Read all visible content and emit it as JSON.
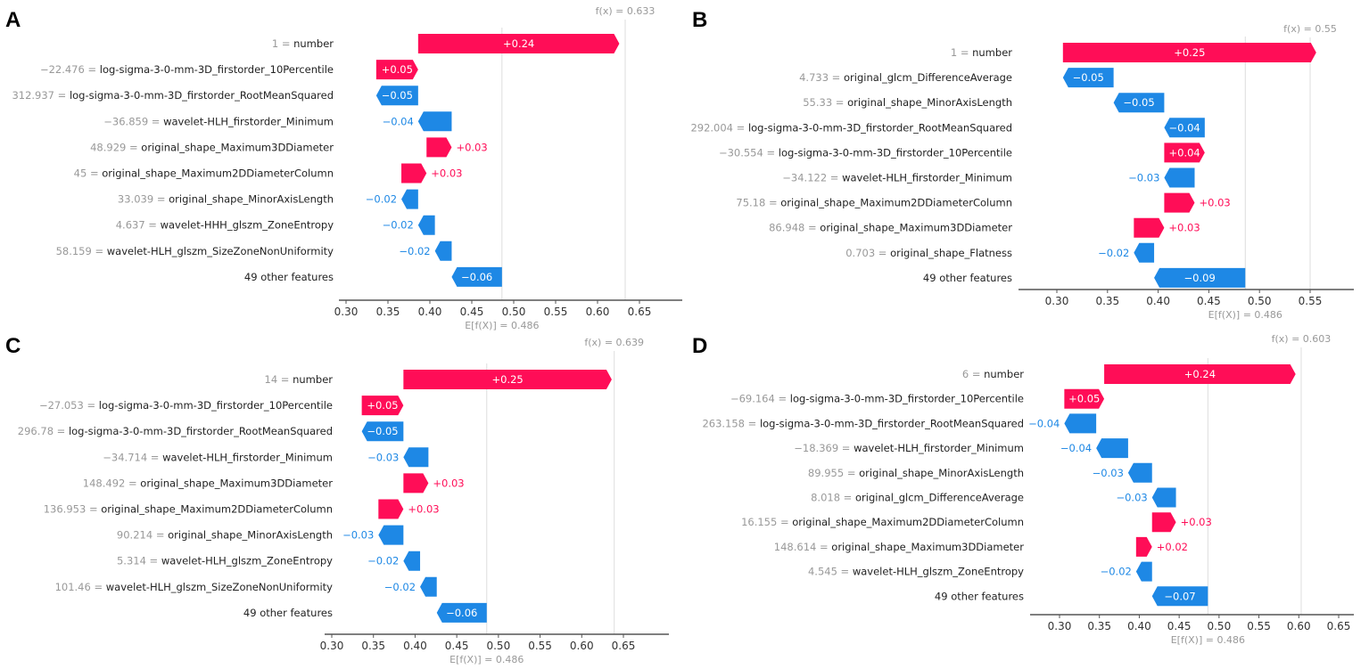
{
  "colors": {
    "positive": "#ff0d57",
    "negative": "#1e88e5",
    "axis": "#555555",
    "muted": "#999999"
  },
  "chart_data": [
    {
      "panel": "A",
      "type": "waterfall",
      "fx": 0.633,
      "fx_label": "f(x) = 0.633",
      "ex": 0.486,
      "ex_label": "E[f(X)] = 0.486",
      "xlim": [
        0.28,
        0.68
      ],
      "xticks": [
        0.3,
        0.35,
        0.4,
        0.45,
        0.5,
        0.55,
        0.6,
        0.65
      ],
      "features": [
        {
          "value": "1",
          "name": "number",
          "shap": 0.24
        },
        {
          "value": "−22.476",
          "name": "log-sigma-3-0-mm-3D_firstorder_10Percentile",
          "shap": 0.05
        },
        {
          "value": "312.937",
          "name": "log-sigma-3-0-mm-3D_firstorder_RootMeanSquared",
          "shap": -0.05
        },
        {
          "value": "−36.859",
          "name": "wavelet-HLH_firstorder_Minimum",
          "shap": -0.04
        },
        {
          "value": "48.929",
          "name": "original_shape_Maximum3DDiameter",
          "shap": 0.03
        },
        {
          "value": "45",
          "name": "original_shape_Maximum2DDiameterColumn",
          "shap": 0.03
        },
        {
          "value": "33.039",
          "name": "original_shape_MinorAxisLength",
          "shap": -0.02
        },
        {
          "value": "4.637",
          "name": "wavelet-HHH_glszm_ZoneEntropy",
          "shap": -0.02
        },
        {
          "value": "58.159",
          "name": "wavelet-HLH_glszm_SizeZoneNonUniformity",
          "shap": -0.02
        },
        {
          "value": "",
          "name": "49 other features",
          "shap": -0.06
        }
      ]
    },
    {
      "panel": "B",
      "type": "waterfall",
      "fx": 0.55,
      "fx_label": "f(x) = 0.55",
      "ex": 0.486,
      "ex_label": "E[f(X)] = 0.486",
      "xlim": [
        0.28,
        0.59
      ],
      "xticks": [
        0.3,
        0.35,
        0.4,
        0.45,
        0.5,
        0.55
      ],
      "features": [
        {
          "value": "1",
          "name": "number",
          "shap": 0.25
        },
        {
          "value": "4.733",
          "name": "original_glcm_DifferenceAverage",
          "shap": -0.05
        },
        {
          "value": "55.33",
          "name": "original_shape_MinorAxisLength",
          "shap": -0.05
        },
        {
          "value": "292.004",
          "name": "log-sigma-3-0-mm-3D_firstorder_RootMeanSquared",
          "shap": -0.04
        },
        {
          "value": "−30.554",
          "name": "log-sigma-3-0-mm-3D_firstorder_10Percentile",
          "shap": 0.04
        },
        {
          "value": "−34.122",
          "name": "wavelet-HLH_firstorder_Minimum",
          "shap": -0.03
        },
        {
          "value": "75.18",
          "name": "original_shape_Maximum2DDiameterColumn",
          "shap": 0.03
        },
        {
          "value": "86.948",
          "name": "original_shape_Maximum3DDiameter",
          "shap": 0.03
        },
        {
          "value": "0.703",
          "name": "original_shape_Flatness",
          "shap": -0.02
        },
        {
          "value": "",
          "name": "49 other features",
          "shap": -0.09
        }
      ]
    },
    {
      "panel": "C",
      "type": "waterfall",
      "fx": 0.639,
      "fx_label": "f(x) = 0.639",
      "ex": 0.486,
      "ex_label": "E[f(X)] = 0.486",
      "xlim": [
        0.28,
        0.68
      ],
      "xticks": [
        0.3,
        0.35,
        0.4,
        0.45,
        0.5,
        0.55,
        0.6,
        0.65
      ],
      "features": [
        {
          "value": "14",
          "name": "number",
          "shap": 0.25
        },
        {
          "value": "−27.053",
          "name": "log-sigma-3-0-mm-3D_firstorder_10Percentile",
          "shap": 0.05
        },
        {
          "value": "296.78",
          "name": "log-sigma-3-0-mm-3D_firstorder_RootMeanSquared",
          "shap": -0.05
        },
        {
          "value": "−34.714",
          "name": "wavelet-HLH_firstorder_Minimum",
          "shap": -0.03
        },
        {
          "value": "148.492",
          "name": "original_shape_Maximum3DDiameter",
          "shap": 0.03
        },
        {
          "value": "136.953",
          "name": "original_shape_Maximum2DDiameterColumn",
          "shap": 0.03
        },
        {
          "value": "90.214",
          "name": "original_shape_MinorAxisLength",
          "shap": -0.03
        },
        {
          "value": "5.314",
          "name": "wavelet-HLH_glszm_ZoneEntropy",
          "shap": -0.02
        },
        {
          "value": "101.46",
          "name": "wavelet-HLH_glszm_SizeZoneNonUniformity",
          "shap": -0.02
        },
        {
          "value": "",
          "name": "49 other features",
          "shap": -0.06
        }
      ]
    },
    {
      "panel": "D",
      "type": "waterfall",
      "fx": 0.603,
      "fx_label": "f(x) = 0.603",
      "ex": 0.486,
      "ex_label": "E[f(X)] = 0.486",
      "xlim": [
        0.27,
        0.67
      ],
      "xticks": [
        0.3,
        0.35,
        0.4,
        0.45,
        0.5,
        0.55,
        0.6,
        0.65
      ],
      "features": [
        {
          "value": "6",
          "name": "number",
          "shap": 0.24
        },
        {
          "value": "−69.164",
          "name": "log-sigma-3-0-mm-3D_firstorder_10Percentile",
          "shap": 0.05
        },
        {
          "value": "263.158",
          "name": "log-sigma-3-0-mm-3D_firstorder_RootMeanSquared",
          "shap": -0.04
        },
        {
          "value": "−18.369",
          "name": "wavelet-HLH_firstorder_Minimum",
          "shap": -0.04
        },
        {
          "value": "89.955",
          "name": "original_shape_MinorAxisLength",
          "shap": -0.03
        },
        {
          "value": "8.018",
          "name": "original_glcm_DifferenceAverage",
          "shap": -0.03
        },
        {
          "value": "16.155",
          "name": "original_shape_Maximum2DDiameterColumn",
          "shap": 0.03
        },
        {
          "value": "148.614",
          "name": "original_shape_Maximum3DDiameter",
          "shap": 0.02
        },
        {
          "value": "4.545",
          "name": "wavelet-HLH_glszm_ZoneEntropy",
          "shap": -0.02
        },
        {
          "value": "",
          "name": "49 other features",
          "shap": -0.07
        }
      ]
    }
  ]
}
